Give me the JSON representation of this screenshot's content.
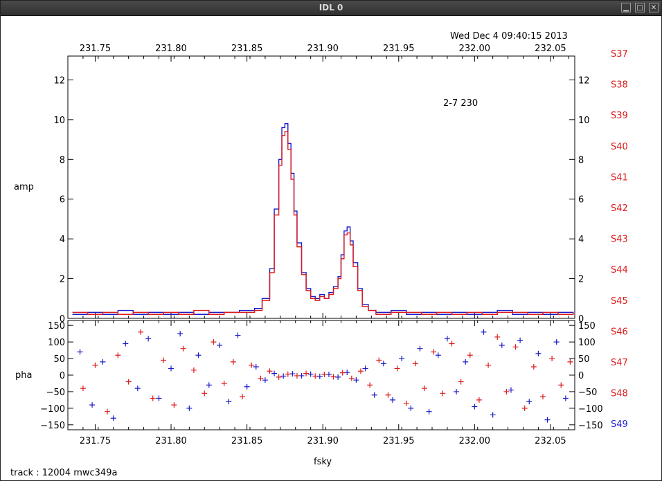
{
  "window": {
    "title": "IDL 0",
    "buttons": [
      {
        "name": "minimize-button",
        "glyph": "▁"
      },
      {
        "name": "maximize-button",
        "glyph": "□"
      },
      {
        "name": "close-button",
        "glyph": "✕"
      }
    ]
  },
  "header": {
    "timestamp": "Wed Dec  4 09:40:15 2013",
    "annotation": "2-7 230",
    "footer": "track : 12004  mwc349a"
  },
  "chart_data": [
    {
      "type": "line",
      "panel": "amp",
      "ylabel": "amp",
      "xlabel": "",
      "xlim": [
        231.732,
        232.066
      ],
      "ylim": [
        0,
        13.2
      ],
      "x_ticks": [
        "231.75",
        "231.80",
        "231.85",
        "231.90",
        "231.95",
        "232.00",
        "232.05"
      ],
      "x_tick_values": [
        231.75,
        231.8,
        231.85,
        231.9,
        231.95,
        232.0,
        232.05
      ],
      "y_ticks": [
        "0",
        "2",
        "4",
        "6",
        "8",
        "10",
        "12"
      ],
      "y_tick_values": [
        0,
        2,
        4,
        6,
        8,
        10,
        12
      ],
      "step_style": true,
      "series": [
        {
          "color": "#1a1acc",
          "x": [
            231.735,
            231.745,
            231.755,
            231.765,
            231.775,
            231.785,
            231.795,
            231.805,
            231.815,
            231.825,
            231.835,
            231.845,
            231.855,
            231.86,
            231.865,
            231.868,
            231.871,
            231.873,
            231.875,
            231.877,
            231.879,
            231.881,
            231.883,
            231.886,
            231.889,
            231.892,
            231.895,
            231.898,
            231.901,
            231.904,
            231.907,
            231.91,
            231.912,
            231.914,
            231.916,
            231.918,
            231.92,
            231.923,
            231.926,
            231.93,
            231.935,
            231.945,
            231.955,
            231.965,
            231.975,
            231.985,
            231.995,
            232.005,
            232.015,
            232.025,
            232.035,
            232.045,
            232.055,
            232.065
          ],
          "y": [
            0.2,
            0.3,
            0.2,
            0.4,
            0.2,
            0.3,
            0.2,
            0.3,
            0.2,
            0.3,
            0.3,
            0.4,
            0.5,
            1.0,
            2.5,
            5.5,
            8.0,
            9.6,
            9.8,
            8.8,
            7.3,
            5.4,
            3.8,
            2.3,
            1.5,
            1.1,
            1.0,
            1.2,
            1.0,
            1.3,
            1.6,
            2.1,
            3.2,
            4.4,
            4.6,
            3.9,
            2.8,
            1.5,
            0.7,
            0.4,
            0.3,
            0.4,
            0.2,
            0.3,
            0.2,
            0.3,
            0.2,
            0.3,
            0.4,
            0.2,
            0.3,
            0.2,
            0.3,
            0.2
          ]
        },
        {
          "color": "#dd1a1a",
          "x": [
            231.735,
            231.745,
            231.755,
            231.765,
            231.775,
            231.785,
            231.795,
            231.805,
            231.815,
            231.825,
            231.835,
            231.845,
            231.855,
            231.86,
            231.865,
            231.868,
            231.871,
            231.873,
            231.875,
            231.877,
            231.879,
            231.881,
            231.883,
            231.886,
            231.889,
            231.892,
            231.895,
            231.898,
            231.901,
            231.904,
            231.907,
            231.91,
            231.912,
            231.914,
            231.916,
            231.918,
            231.92,
            231.923,
            231.926,
            231.93,
            231.935,
            231.945,
            231.955,
            231.965,
            231.975,
            231.985,
            231.995,
            232.005,
            232.015,
            232.025,
            232.035,
            232.045,
            232.055,
            232.065
          ],
          "y": [
            0.3,
            0.2,
            0.3,
            0.2,
            0.3,
            0.2,
            0.3,
            0.2,
            0.4,
            0.2,
            0.3,
            0.3,
            0.4,
            0.9,
            2.3,
            5.2,
            7.7,
            9.2,
            9.4,
            8.5,
            7.0,
            5.2,
            3.6,
            2.2,
            1.4,
            1.0,
            0.9,
            1.1,
            1.0,
            1.2,
            1.5,
            2.0,
            3.0,
            4.2,
            4.3,
            3.7,
            2.6,
            1.4,
            0.6,
            0.4,
            0.2,
            0.3,
            0.3,
            0.2,
            0.3,
            0.2,
            0.3,
            0.2,
            0.3,
            0.3,
            0.2,
            0.3,
            0.2,
            0.3
          ]
        }
      ]
    },
    {
      "type": "scatter",
      "panel": "pha",
      "ylabel": "pha",
      "xlabel": "fsky",
      "xlim": [
        231.732,
        232.066
      ],
      "ylim": [
        -165,
        165
      ],
      "x_ticks": [
        "231.75",
        "231.80",
        "231.85",
        "231.90",
        "231.95",
        "232.00",
        "232.05"
      ],
      "x_tick_values": [
        231.75,
        231.8,
        231.85,
        231.9,
        231.95,
        232.0,
        232.05
      ],
      "y_ticks": [
        "−150",
        "−100",
        "−50",
        "0",
        "50",
        "100",
        "150"
      ],
      "y_tick_values": [
        -150,
        -100,
        -50,
        0,
        50,
        100,
        150
      ],
      "series": [
        {
          "color": "#1a1acc",
          "marker": "+",
          "x": [
            231.74,
            231.748,
            231.755,
            231.762,
            231.77,
            231.778,
            231.785,
            231.792,
            231.8,
            231.806,
            231.812,
            231.818,
            231.825,
            231.832,
            231.838,
            231.844,
            231.85,
            231.856,
            231.862,
            231.868,
            231.874,
            231.88,
            231.886,
            231.892,
            231.898,
            231.904,
            231.91,
            231.916,
            231.922,
            231.928,
            231.934,
            231.94,
            231.946,
            231.952,
            231.958,
            231.964,
            231.97,
            231.976,
            231.982,
            231.988,
            231.994,
            232.0,
            232.006,
            232.012,
            232.018,
            232.024,
            232.03,
            232.036,
            232.042,
            232.048,
            232.054,
            232.06
          ],
          "y": [
            70,
            -90,
            40,
            -130,
            95,
            -40,
            110,
            -70,
            20,
            125,
            -100,
            60,
            -30,
            90,
            -80,
            120,
            -35,
            25,
            -15,
            5,
            -3,
            4,
            -2,
            3,
            -4,
            2,
            -6,
            8,
            -15,
            20,
            -60,
            35,
            -75,
            50,
            -100,
            80,
            -110,
            60,
            110,
            -50,
            40,
            -95,
            130,
            -120,
            90,
            -45,
            105,
            -80,
            65,
            -135,
            100,
            -70
          ]
        },
        {
          "color": "#dd1a1a",
          "marker": "+",
          "x": [
            231.742,
            231.75,
            231.758,
            231.765,
            231.772,
            231.78,
            231.788,
            231.795,
            231.802,
            231.808,
            231.815,
            231.822,
            231.828,
            231.835,
            231.841,
            231.847,
            231.853,
            231.859,
            231.865,
            231.871,
            231.877,
            231.883,
            231.889,
            231.895,
            231.901,
            231.907,
            231.913,
            231.919,
            231.925,
            231.931,
            231.937,
            231.943,
            231.949,
            231.955,
            231.961,
            231.967,
            231.973,
            231.979,
            231.985,
            231.991,
            231.997,
            232.003,
            232.009,
            232.015,
            232.021,
            232.027,
            232.033,
            232.039,
            232.045,
            232.051,
            232.057,
            232.063
          ],
          "y": [
            -40,
            30,
            -110,
            60,
            -20,
            130,
            -70,
            45,
            -90,
            80,
            15,
            -55,
            100,
            -25,
            40,
            -65,
            30,
            -10,
            12,
            -6,
            3,
            -2,
            5,
            -3,
            2,
            -5,
            7,
            -10,
            12,
            -30,
            45,
            -60,
            20,
            -85,
            35,
            -40,
            70,
            -55,
            95,
            -20,
            60,
            -75,
            30,
            115,
            -50,
            85,
            -100,
            25,
            -65,
            50,
            -30,
            40
          ]
        }
      ]
    }
  ],
  "legend": [
    {
      "label": "S37",
      "color": "#dd1a1a"
    },
    {
      "label": "S38",
      "color": "#dd1a1a"
    },
    {
      "label": "S39",
      "color": "#dd1a1a"
    },
    {
      "label": "S40",
      "color": "#dd1a1a"
    },
    {
      "label": "S41",
      "color": "#dd1a1a"
    },
    {
      "label": "S42",
      "color": "#dd1a1a"
    },
    {
      "label": "S43",
      "color": "#dd1a1a"
    },
    {
      "label": "S44",
      "color": "#dd1a1a"
    },
    {
      "label": "S45",
      "color": "#dd1a1a"
    },
    {
      "label": "S46",
      "color": "#dd1a1a"
    },
    {
      "label": "S47",
      "color": "#dd1a1a"
    },
    {
      "label": "S48",
      "color": "#dd1a1a"
    },
    {
      "label": "S49",
      "color": "#1a1acc"
    }
  ]
}
